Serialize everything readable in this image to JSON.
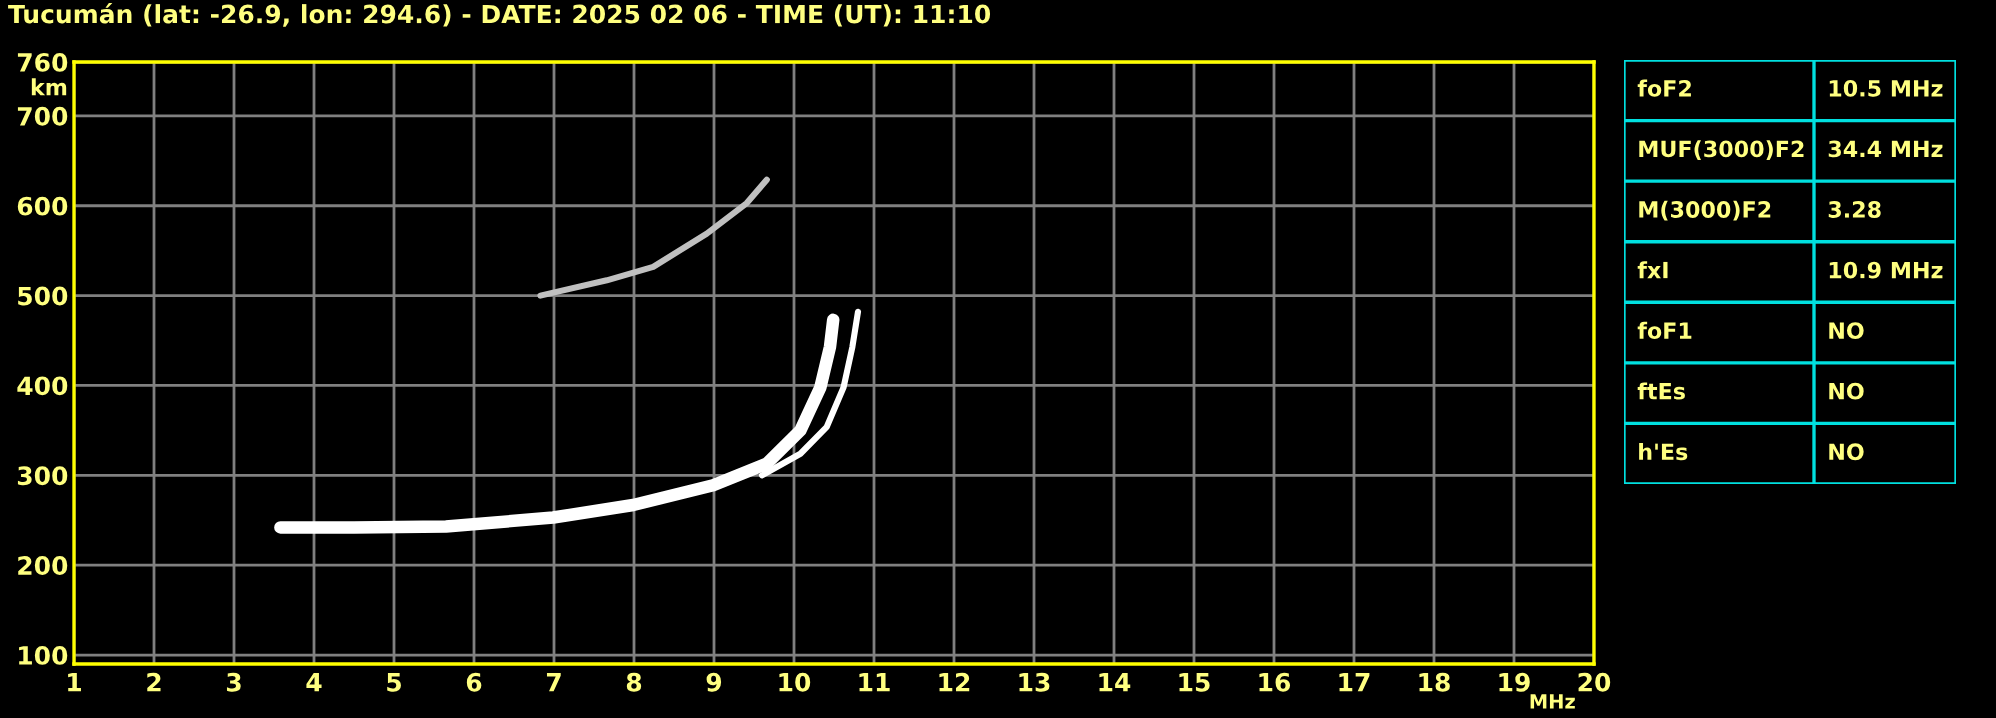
{
  "chart_data": [
    {
      "type": "line",
      "title": "Tucumán (lat: -26.9, lon: 294.6) - DATE: 2025 02 06 - TIME (UT): 11:10",
      "xlabel": "MHz",
      "ylabel": "km",
      "xlim": [
        1,
        20
      ],
      "ylim": [
        90,
        760
      ],
      "xticks": [
        1,
        2,
        3,
        4,
        5,
        6,
        7,
        8,
        9,
        10,
        11,
        12,
        13,
        14,
        15,
        16,
        17,
        18,
        19,
        20
      ],
      "yticks": [
        100,
        200,
        300,
        400,
        500,
        600,
        700,
        760
      ],
      "grid": true,
      "legend": false,
      "marker": "none",
      "line_style": "solid",
      "series": [
        {
          "color": "#ffffff",
          "x": [
            3.58,
            4.5,
            5.65,
            6.99,
            7.99,
            8.99,
            9.66,
            10.08,
            10.33,
            10.45,
            10.49
          ],
          "values": [
            242,
            242,
            243,
            253,
            267,
            289,
            313,
            350,
            398,
            443,
            473
          ]
        },
        {
          "color": "#ffffff",
          "x": [
            9.6,
            10.08,
            10.41,
            10.62,
            10.73,
            10.8
          ],
          "values": [
            300,
            324,
            354,
            398,
            443,
            482
          ]
        },
        {
          "color": "#c0c0c0",
          "x": [
            6.83,
            7.66,
            8.24,
            8.91,
            9.41,
            9.66
          ],
          "values": [
            500,
            517,
            532,
            569,
            603,
            629
          ]
        }
      ]
    },
    {
      "type": "other",
      "annotations": [
        "foF2",
        "10.5 MHz",
        "MUF(3000)F2",
        "34.4 MHz",
        "M(3000)F2",
        "3.28",
        "fxI",
        "10.9 MHz",
        "foF1",
        "NO",
        "ftEs",
        "NO",
        "h'Es",
        "NO"
      ]
    }
  ]
}
